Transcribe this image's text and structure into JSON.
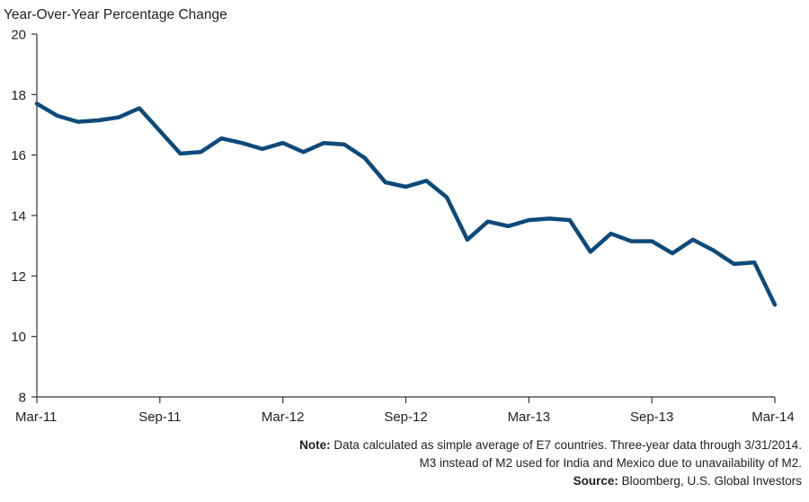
{
  "chart_data": {
    "type": "line",
    "ylabel": "Year-Over-Year Percentage Change",
    "ylim": [
      8,
      20
    ],
    "yticks": [
      "8",
      "10",
      "12",
      "14",
      "16",
      "18",
      "20"
    ],
    "xtick_labels": [
      "Mar-11",
      "Sep-11",
      "Mar-12",
      "Sep-12",
      "Mar-13",
      "Sep-13",
      "Mar-14"
    ],
    "x": [
      "Mar-11",
      "Apr-11",
      "May-11",
      "Jun-11",
      "Jul-11",
      "Aug-11",
      "Sep-11",
      "Oct-11",
      "Nov-11",
      "Dec-11",
      "Jan-12",
      "Feb-12",
      "Mar-12",
      "Apr-12",
      "May-12",
      "Jun-12",
      "Jul-12",
      "Aug-12",
      "Sep-12",
      "Oct-12",
      "Nov-12",
      "Dec-12",
      "Jan-13",
      "Feb-13",
      "Mar-13",
      "Apr-13",
      "May-13",
      "Jun-13",
      "Jul-13",
      "Aug-13",
      "Sep-13",
      "Oct-13",
      "Nov-13",
      "Dec-13",
      "Jan-14",
      "Feb-14",
      "Mar-14"
    ],
    "series": [
      {
        "values": [
          17.7,
          17.3,
          17.1,
          17.15,
          17.25,
          17.55,
          16.8,
          16.05,
          16.1,
          16.55,
          16.4,
          16.2,
          16.4,
          16.1,
          16.4,
          16.35,
          15.9,
          15.1,
          14.95,
          15.15,
          14.6,
          13.2,
          13.8,
          13.65,
          13.85,
          13.9,
          13.85,
          12.8,
          13.4,
          13.15,
          13.15,
          12.75,
          13.2,
          12.85,
          12.4,
          12.45,
          11.05
        ],
        "color": "#0d4a7a"
      }
    ],
    "grid": false
  },
  "notes": {
    "note_label": "Note:",
    "note_line1": " Data calculated as simple average of E7 countries. Three-year data through 3/31/2014.",
    "note_line2": "M3 instead of M2 used for India and Mexico due to unavailability of M2.",
    "source_label": "Source:",
    "source_text": " Bloomberg, U.S. Global Investors"
  }
}
